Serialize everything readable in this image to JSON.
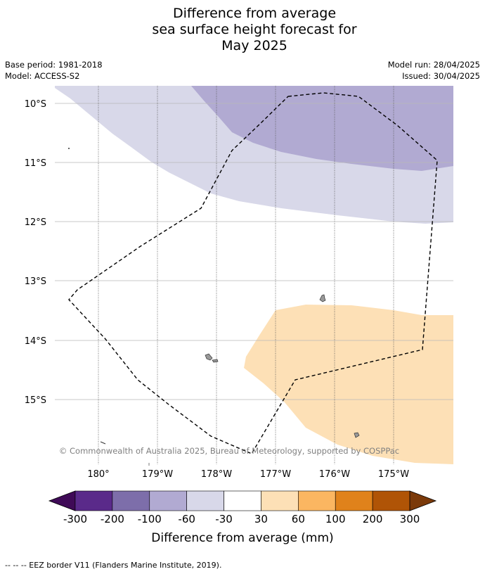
{
  "title_lines": [
    "Difference from average",
    "sea surface height forecast for",
    "May 2025"
  ],
  "base_period": "Base period: 1981-2018",
  "model": "Model: ACCESS-S2",
  "model_run": "Model run: 28/04/2025",
  "issued": "Issued: 30/04/2025",
  "lat_labels": [
    "10°S",
    "11°S",
    "12°S",
    "13°S",
    "14°S",
    "15°S"
  ],
  "lon_labels": [
    "180°",
    "179°W",
    "178°W",
    "177°W",
    "176°W",
    "175°W"
  ],
  "copyright": "© Commonwealth of Australia 2025, Bureau of Meteorology, supported by COSPPac",
  "colorbar": {
    "title": "Difference from average (mm)",
    "tick_labels": [
      "-300",
      "-200",
      "-100",
      "-60",
      "-30",
      "30",
      "60",
      "100",
      "200",
      "300"
    ],
    "colors": [
      "#3f0a57",
      "#5a2a8a",
      "#7d6eaa",
      "#b1aad2",
      "#d8d8e9",
      "#ffffff",
      "#fde0b6",
      "#fbb661",
      "#e0821b",
      "#b05406",
      "#7b3a0a"
    ]
  },
  "footnote": "-- -- -- EEZ border V11 (Flanders Marine Institute, 2019)."
}
